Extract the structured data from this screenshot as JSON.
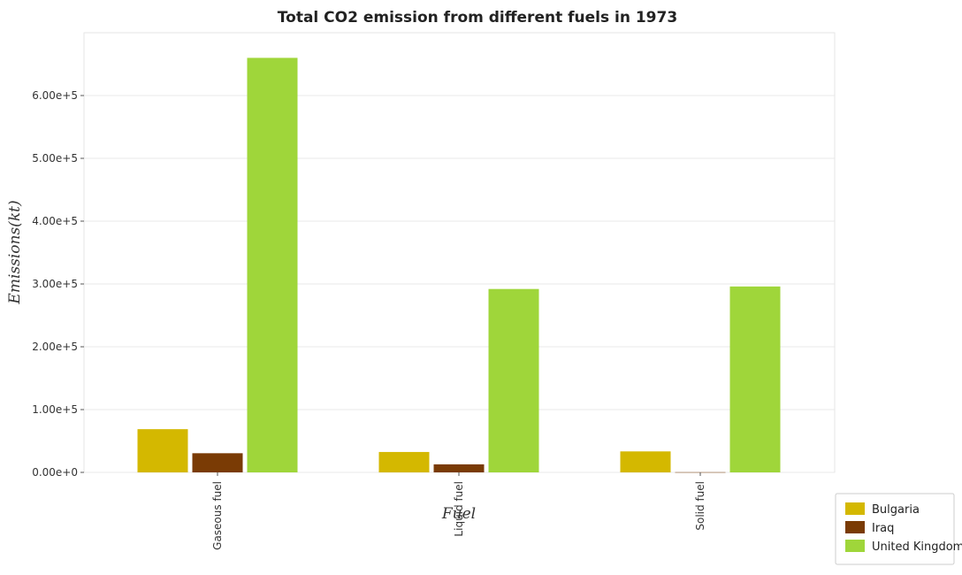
{
  "chart_data": {
    "type": "bar",
    "title": "Total CO2 emission from different fuels in 1973",
    "xlabel": "Fuel",
    "ylabel": "Emissions(kt)",
    "categories": [
      "Gaseous fuel",
      "Liquid fuel",
      "Solid fuel"
    ],
    "series": [
      {
        "name": "Bulgaria",
        "color": "#d4b800",
        "values": [
          68800,
          32500,
          33400
        ]
      },
      {
        "name": "Iraq",
        "color": "#7a3b05",
        "values": [
          30500,
          12800,
          300
        ]
      },
      {
        "name": "United Kingdom",
        "color": "#9fd63a",
        "values": [
          660000,
          292000,
          296000
        ]
      }
    ],
    "ylim": [
      0,
      700000
    ],
    "yticks": [
      0,
      100000,
      200000,
      300000,
      400000,
      500000,
      600000
    ],
    "ytick_labels": [
      "0.00e+0",
      "1.00e+5",
      "2.00e+5",
      "3.00e+5",
      "4.00e+5",
      "5.00e+5",
      "6.00e+5"
    ],
    "grid": true,
    "legend_position": "bottom-right"
  }
}
